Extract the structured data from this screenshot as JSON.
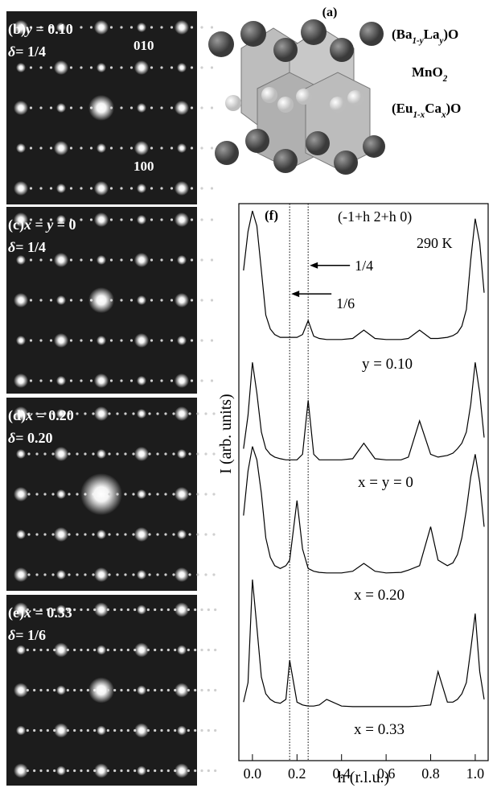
{
  "structure": {
    "label": "(a)",
    "formulas": [
      [
        {
          "t": "(Ba"
        },
        {
          "sub": "1-y"
        },
        {
          "t": "La"
        },
        {
          "sub": "y"
        },
        {
          "t": ")O"
        }
      ],
      [
        {
          "t": "MnO"
        },
        {
          "sub": "2"
        }
      ],
      [
        {
          "t": "(Eu"
        },
        {
          "sub": "1-x"
        },
        {
          "t": "Ca"
        },
        {
          "sub": "x"
        },
        {
          "t": ")O"
        }
      ]
    ]
  },
  "panels": [
    {
      "label": "(b)",
      "composition": [
        {
          "i": "y"
        },
        {
          "t": " = 0.10"
        }
      ],
      "delta": [
        {
          "i": "δ"
        },
        {
          "t": "= 1/4"
        }
      ],
      "indices": [
        "010",
        "100"
      ]
    },
    {
      "label": "(c)",
      "composition": [
        {
          "i": "x"
        },
        {
          "t": " = "
        },
        {
          "i": "y"
        },
        {
          "t": " = 0"
        }
      ],
      "delta": [
        {
          "i": "δ"
        },
        {
          "t": "= 1/4"
        }
      ]
    },
    {
      "label": "(d)",
      "composition": [
        {
          "i": "x"
        },
        {
          "t": " = 0.20"
        }
      ],
      "delta": [
        {
          "i": "δ"
        },
        {
          "t": "= 0.20"
        }
      ]
    },
    {
      "label": "(e)",
      "composition": [
        {
          "i": "x"
        },
        {
          "t": " = 0.33"
        }
      ],
      "delta": [
        {
          "i": "δ"
        },
        {
          "t": "= 1/6"
        }
      ]
    }
  ],
  "chart_data": {
    "type": "line",
    "panel_label": "(f)",
    "title": "(-1+h 2+h 0)",
    "subtitle": "290 K",
    "x_label": "h (r.l.u.)",
    "y_label": "I (arb. units)",
    "xlim": [
      -0.061,
      1.058
    ],
    "ylim": [
      0,
      100
    ],
    "xticks": [
      {
        "value": 0,
        "label": "0.0"
      },
      {
        "value": 0.2,
        "label": "0.2"
      },
      {
        "value": 0.4,
        "label": "0.4"
      },
      {
        "value": 0.6,
        "label": "0.6"
      },
      {
        "value": 0.8,
        "label": "0.8"
      },
      {
        "value": 1,
        "label": "1.0"
      }
    ],
    "vlines": [
      0.167,
      0.25
    ],
    "annotations": [
      {
        "text": "1/4",
        "x": 0.25,
        "y": 88.9
      },
      {
        "text": "1/6",
        "x": 0.167,
        "y": 83.8
      }
    ],
    "x": [
      -0.04,
      -0.02,
      0,
      0.02,
      0.04,
      0.06,
      0.08,
      0.1,
      0.125,
      0.15,
      0.167,
      0.2,
      0.225,
      0.25,
      0.275,
      0.3,
      0.333,
      0.4,
      0.45,
      0.5,
      0.55,
      0.6,
      0.667,
      0.7,
      0.75,
      0.8,
      0.833,
      0.875,
      0.9,
      0.92,
      0.94,
      0.96,
      0.98,
      1.0,
      1.02,
      1.04
    ],
    "series": [
      {
        "name": "y = 0.10",
        "color": "#000000",
        "values": [
          88,
          95,
          98.7,
          96,
          88,
          80,
          77.5,
          76.5,
          76,
          76,
          76,
          76,
          76.5,
          79,
          76.2,
          75.8,
          75.6,
          75.6,
          75.8,
          77.3,
          75.8,
          75.6,
          75.6,
          75.8,
          77.3,
          75.8,
          75.8,
          76,
          76.3,
          76.8,
          78,
          81,
          90,
          97.3,
          93,
          84
        ]
      },
      {
        "name": "x = y = 0",
        "color": "#000000",
        "values": [
          56,
          62,
          71.5,
          66,
          59,
          56,
          55,
          54.5,
          54.2,
          54,
          54,
          54,
          55,
          64.7,
          55,
          54,
          54,
          54,
          54.2,
          57,
          54.2,
          54,
          54,
          54.5,
          61,
          55,
          54.5,
          54.8,
          55.2,
          56,
          57,
          59,
          64,
          71.5,
          66,
          58
        ]
      },
      {
        "name": "x = 0.20",
        "color": "#000000",
        "values": [
          44,
          52,
          56.4,
          54,
          48,
          40,
          36.5,
          35,
          34.5,
          35,
          36,
          46.7,
          38,
          34.5,
          34,
          33.8,
          33.7,
          33.7,
          34,
          35.4,
          34,
          33.7,
          33.8,
          34.2,
          35,
          42,
          36,
          35,
          35.5,
          37,
          40,
          45,
          51,
          55,
          50,
          42
        ]
      },
      {
        "name": "x = 0.33",
        "color": "#000000",
        "values": [
          10.5,
          14,
          32.5,
          24,
          15,
          12,
          11,
          10.5,
          10.3,
          11,
          18,
          10.5,
          10,
          9.8,
          9.8,
          10,
          11,
          9.8,
          9.7,
          9.7,
          9.7,
          9.7,
          9.7,
          9.7,
          9.8,
          10,
          16,
          10.5,
          10.5,
          11,
          12,
          14,
          20,
          26.4,
          16,
          11
        ]
      }
    ]
  }
}
